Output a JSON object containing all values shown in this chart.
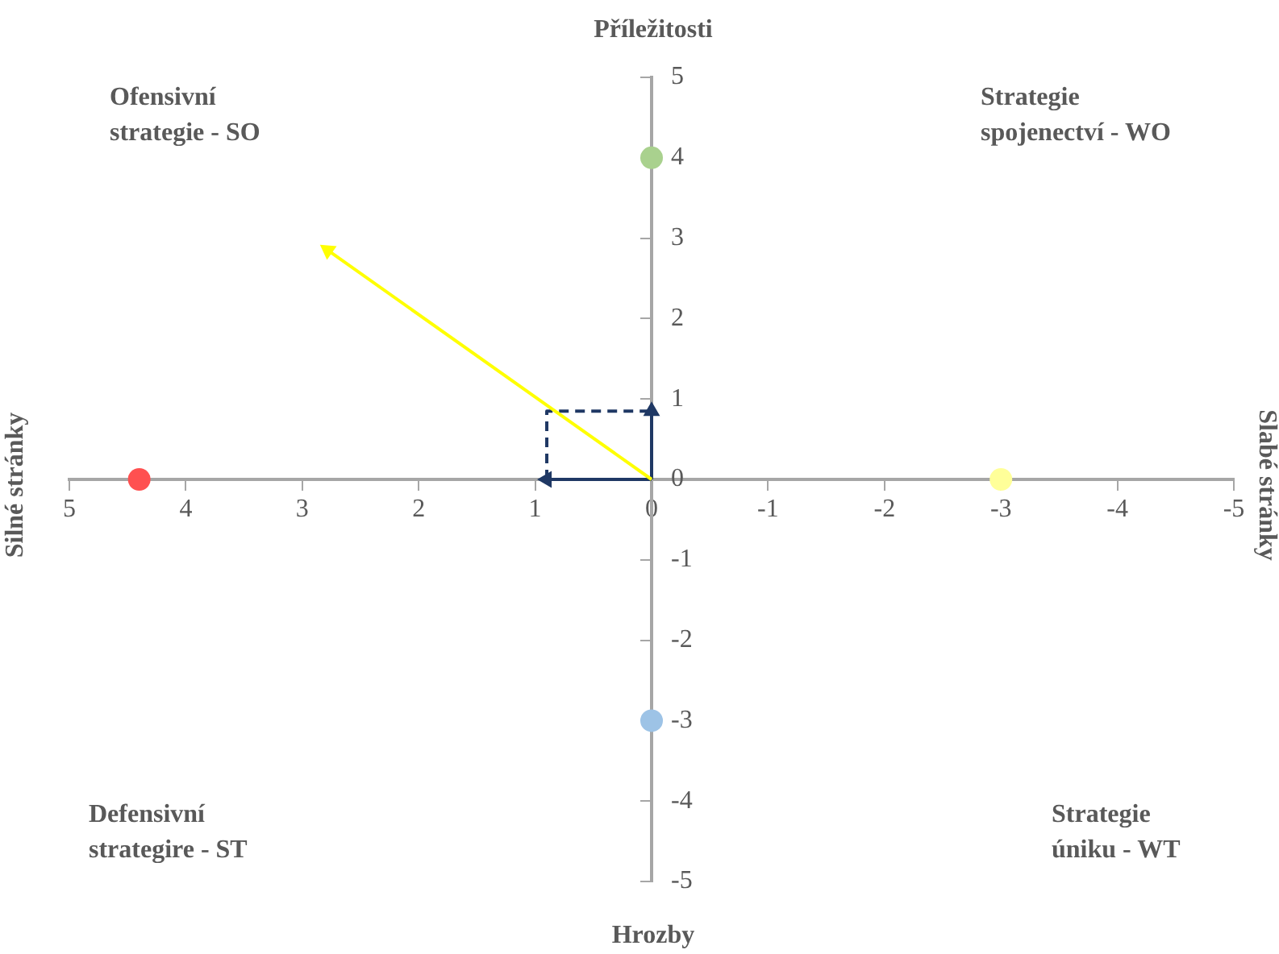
{
  "chart_data": {
    "type": "scatter",
    "xlim": [
      5,
      -5
    ],
    "ylim": [
      -5,
      5
    ],
    "xticks": [
      5,
      4,
      3,
      2,
      1,
      0,
      -1,
      -2,
      -3,
      -4,
      -5
    ],
    "yticks": [
      -5,
      -4,
      -3,
      -2,
      -1,
      0,
      1,
      2,
      3,
      4,
      5
    ],
    "grid": false,
    "legend": false,
    "marker": "circle",
    "series": [
      {
        "x": [
          4.4
        ],
        "values": [
          0
        ],
        "color": "#ff5050"
      },
      {
        "x": [
          0
        ],
        "values": [
          4
        ],
        "color": "#a9d18e"
      },
      {
        "x": [
          -3
        ],
        "values": [
          0
        ],
        "color": "#ffff99"
      },
      {
        "x": [
          0
        ],
        "values": [
          -3
        ],
        "color": "#9dc3e6"
      },
      {
        "type": "line",
        "x": [
          0,
          2.78
        ],
        "values": [
          0,
          2.85
        ],
        "color": "#ffff00",
        "marker": "triangle",
        "line_style": "solid"
      },
      {
        "type": "line",
        "x": [
          0,
          0.9
        ],
        "values": [
          0,
          0
        ],
        "color": "#1f3864",
        "marker": "triangle",
        "line_style": "solid"
      },
      {
        "type": "line",
        "x": [
          0,
          0
        ],
        "values": [
          0,
          0.85
        ],
        "color": "#1f3864",
        "marker": "triangle",
        "line_style": "solid"
      },
      {
        "type": "line",
        "x": [
          0.9,
          0.9,
          0
        ],
        "values": [
          0,
          0.85,
          0.85
        ],
        "color": "#1f3864",
        "marker": "none",
        "line_style": "dashed"
      }
    ],
    "annotations": [
      "Ofensivní strategie - SO",
      "Strategie spojenectví - WO",
      "Defensivní strategire - ST",
      "Strategie úniku - WT",
      "Příležitosti",
      "Hrozby",
      "Silné stránky",
      "Slabé stránky"
    ]
  }
}
